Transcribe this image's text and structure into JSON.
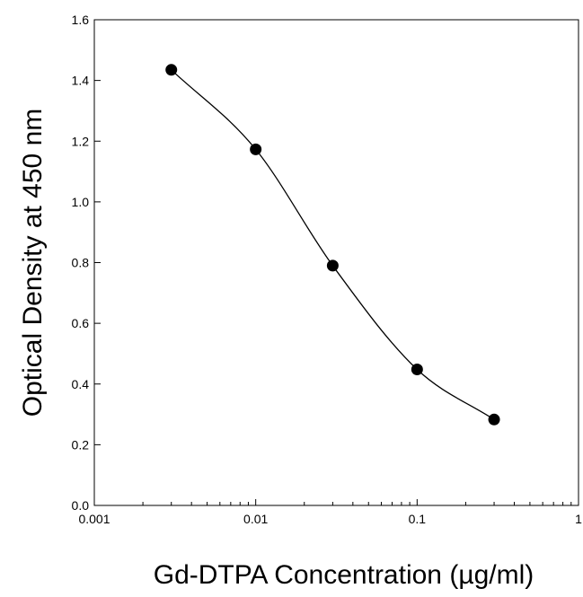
{
  "chart_data": {
    "type": "scatter",
    "title": "",
    "xlabel": "Gd-DTPA Concentration (µg/ml)",
    "ylabel": "Optical Density at 450 nm",
    "x_scale": "log",
    "xlim": [
      0.001,
      1
    ],
    "ylim": [
      0.0,
      1.6
    ],
    "x_ticks": [
      "0.001",
      "0.01",
      "0.1",
      "1"
    ],
    "y_ticks": [
      "0.0",
      "0.2",
      "0.4",
      "0.6",
      "0.8",
      "1.0",
      "1.2",
      "1.4",
      "1.6"
    ],
    "grid": false,
    "legend": "none",
    "series": [
      {
        "x": [
          0.003,
          0.01,
          0.03,
          0.1,
          0.3
        ],
        "y": [
          1.435,
          1.173,
          0.79,
          0.448,
          0.283
        ],
        "marker": "filled-circle",
        "color": "#000000",
        "fit_curve": "smooth sigmoidal fit line"
      }
    ]
  }
}
